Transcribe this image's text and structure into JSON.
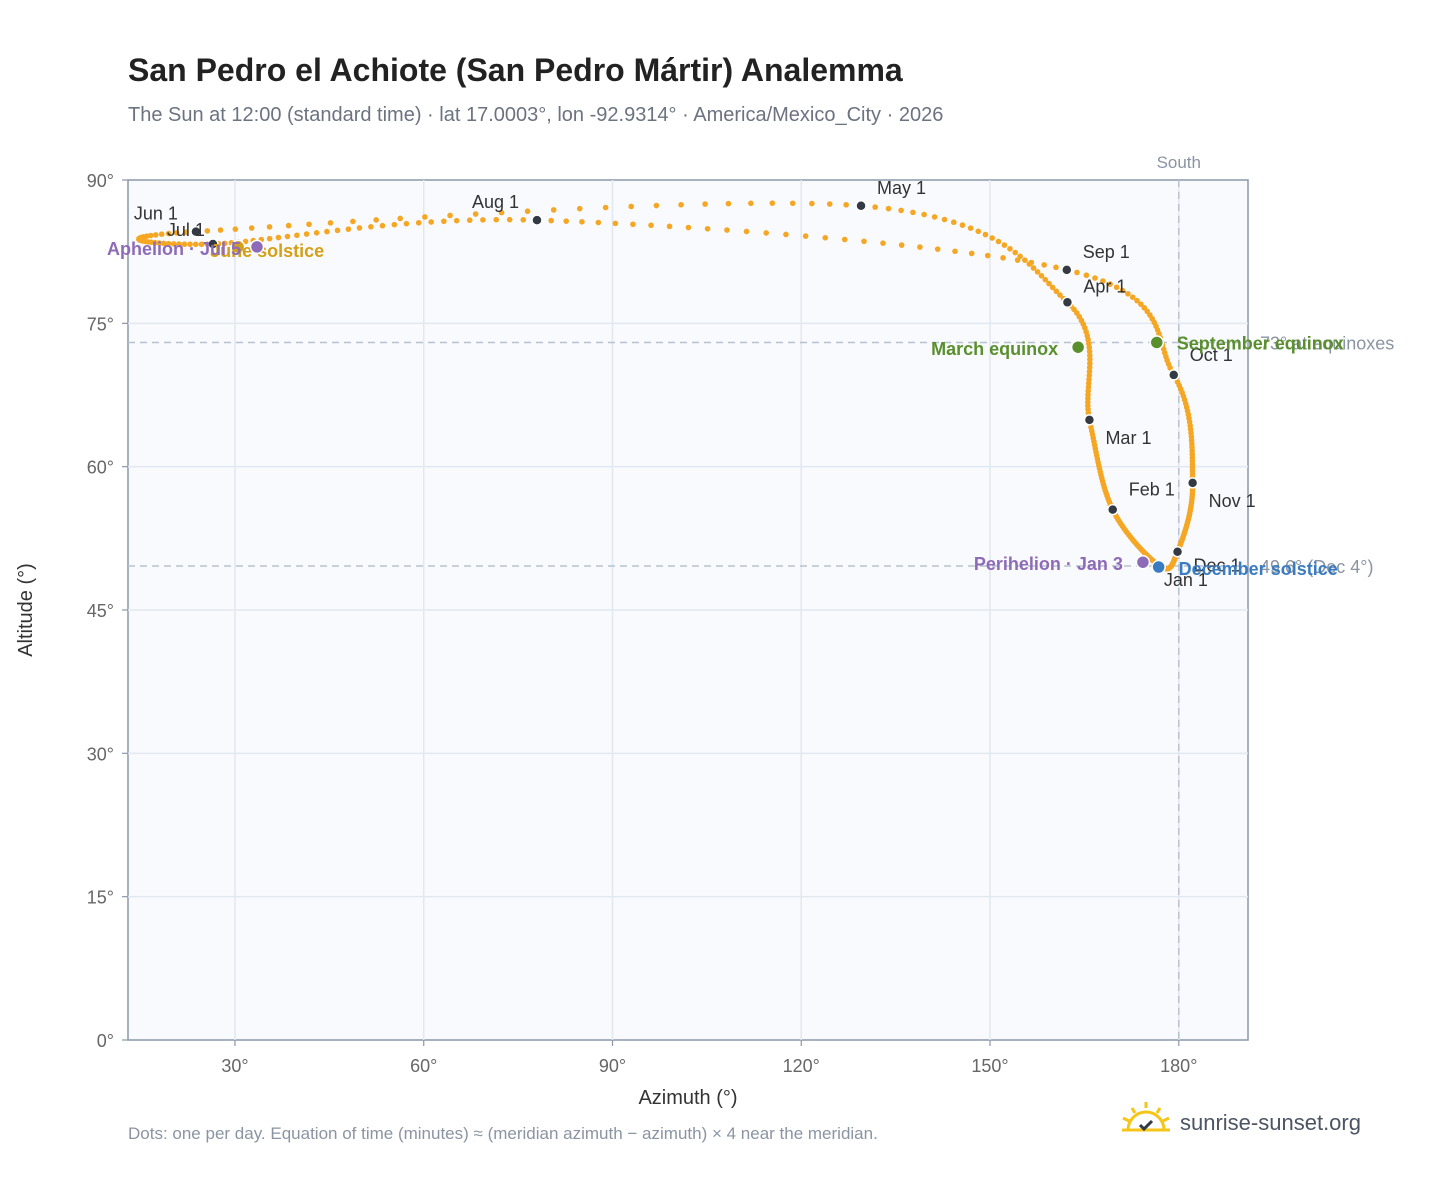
{
  "title": "San Pedro el Achiote (San Pedro Mártir) Analemma",
  "subtitle": "The Sun at 12:00 (standard time) · lat 17.0003°, lon -92.9314° · America/Mexico_City · 2026",
  "footnote": "Dots: one per day. Equation of time (minutes) ≈ (meridian azimuth − azimuth) × 4 near the meridian.",
  "brand": "sunrise-sunset.org",
  "colors": {
    "curve": "#f5a623",
    "month_marker": "#333a44",
    "equinox": "#5a8f2e",
    "june_solstice": "#d4a017",
    "december_solstice": "#3a7cc2",
    "apsis": "#8e6bb8",
    "plot_bg": "#f8fafd",
    "grid": "#e2e8f0"
  },
  "chart_data": {
    "type": "scatter",
    "xlabel": "Azimuth (°)",
    "ylabel": "Altitude (°)",
    "xlim": [
      13,
      191
    ],
    "ylim": [
      0,
      90
    ],
    "x_ticks": [
      30,
      60,
      90,
      120,
      150,
      180
    ],
    "x_tick_labels": [
      "30°",
      "60°",
      "90°",
      "120°",
      "150°",
      "180°"
    ],
    "y_ticks": [
      0,
      15,
      30,
      45,
      60,
      75,
      90
    ],
    "y_tick_labels": [
      "0°",
      "15°",
      "30°",
      "45°",
      "60°",
      "75°",
      "90°"
    ],
    "grid": true,
    "south_line": {
      "azimuth": 180,
      "label": "South"
    },
    "reference_lines": [
      {
        "altitude": 73.0,
        "label": "73° at equinoxes"
      },
      {
        "altitude": 49.6,
        "label": "49.6° (Dec 4°)"
      }
    ],
    "months": [
      {
        "label": "Jan 1",
        "az": 177.0,
        "alt": 49.6
      },
      {
        "label": "Feb 1",
        "az": 169.5,
        "alt": 55.5
      },
      {
        "label": "Mar 1",
        "az": 165.8,
        "alt": 64.9
      },
      {
        "label": "Apr 1",
        "az": 162.3,
        "alt": 77.2
      },
      {
        "label": "May 1",
        "az": 129.5,
        "alt": 87.3
      },
      {
        "label": "Jun 1",
        "az": 23.8,
        "alt": 84.6
      },
      {
        "label": "Jul 1",
        "az": 26.5,
        "alt": 83.3
      },
      {
        "label": "Aug 1",
        "az": 78.0,
        "alt": 85.8
      },
      {
        "label": "Sep 1",
        "az": 162.2,
        "alt": 80.6
      },
      {
        "label": "Oct 1",
        "az": 179.2,
        "alt": 69.6
      },
      {
        "label": "Nov 1",
        "az": 182.2,
        "alt": 58.3
      },
      {
        "label": "Dec 1",
        "az": 179.8,
        "alt": 51.1
      }
    ],
    "events": [
      {
        "label": "March equinox",
        "az": 164.0,
        "alt": 72.5,
        "kind": "equinox"
      },
      {
        "label": "September equinox",
        "az": 176.5,
        "alt": 73.0,
        "kind": "equinox"
      },
      {
        "label": "June solstice",
        "az": 30.5,
        "alt": 83.0,
        "kind": "june_solstice"
      },
      {
        "label": "December solstice",
        "az": 176.8,
        "alt": 49.5,
        "kind": "december_solstice"
      },
      {
        "label": "Perihelion · Jan 3",
        "az": 174.3,
        "alt": 50.0,
        "kind": "apsis"
      },
      {
        "label": "Aphelion · Jul 5",
        "az": 33.5,
        "alt": 83.0,
        "kind": "apsis"
      }
    ]
  }
}
